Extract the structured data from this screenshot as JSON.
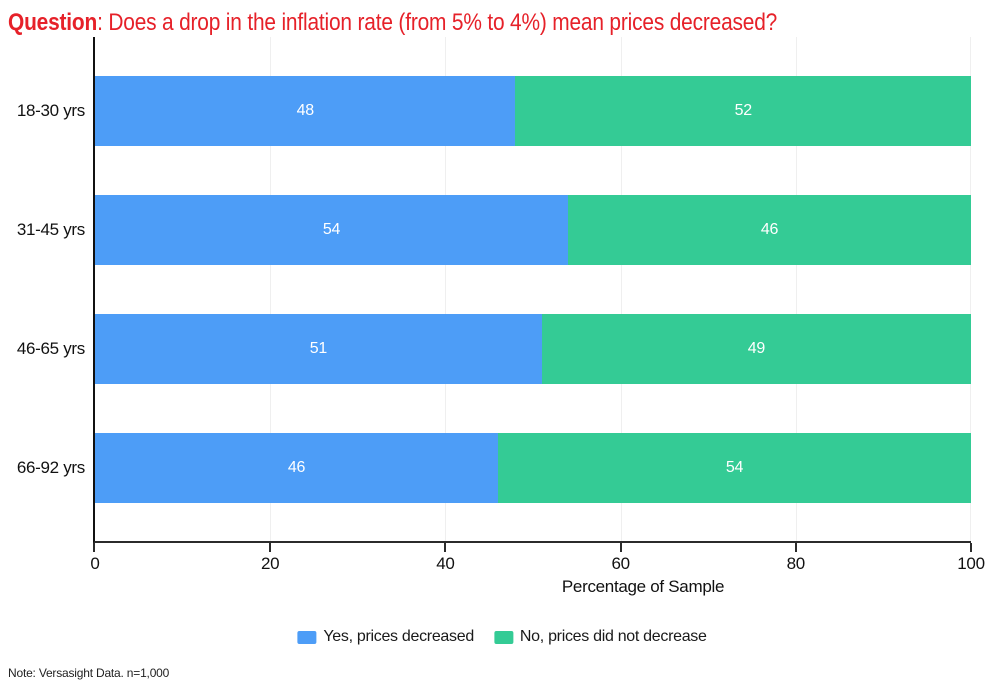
{
  "title": {
    "prefix": "Question",
    "rest": ": Does a drop in the inflation rate (from 5% to 4%) mean prices decreased?",
    "color": "#e62129"
  },
  "chart_data": {
    "type": "bar",
    "orientation": "horizontal",
    "stacked": true,
    "title": "Question: Does a drop in the inflation rate (from 5% to 4%) mean prices decreased?",
    "categories": [
      "18-30 yrs",
      "31-45 yrs",
      "46-65 yrs",
      "66-92 yrs"
    ],
    "series": [
      {
        "name": "Yes, prices decreased",
        "color": "#4d9df7",
        "values": [
          48,
          54,
          51,
          46
        ]
      },
      {
        "name": "No, prices did not decrease",
        "color": "#34cb95",
        "values": [
          52,
          46,
          49,
          54
        ]
      }
    ],
    "xlabel": "Percentage of Sample",
    "xlim": [
      0,
      100
    ],
    "xticks": [
      0,
      20,
      40,
      60,
      80,
      100
    ],
    "grid": "faint vertical gridlines at ticks",
    "legend_position": "bottom center",
    "bar_label_color": "#ffffff"
  },
  "note": "Note: Versasight Data. n=1,000"
}
